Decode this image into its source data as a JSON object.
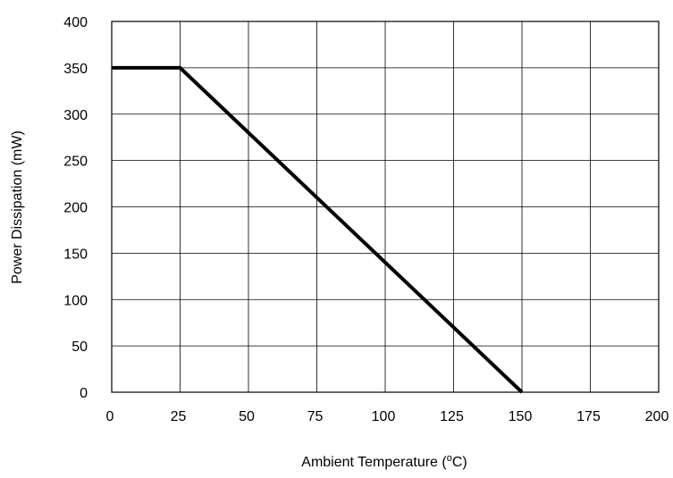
{
  "chart_data": {
    "type": "line",
    "title": "",
    "xlabel": "Ambient Temperature (oC)",
    "xlabel_main": "Ambient Temperature (",
    "xlabel_super": "o",
    "xlabel_tail": "C)",
    "ylabel": "Power Dissipation (mW)",
    "xlim": [
      0,
      200
    ],
    "ylim": [
      0,
      400
    ],
    "xticks": [
      0,
      25,
      50,
      75,
      100,
      125,
      150,
      175,
      200
    ],
    "yticks": [
      0,
      50,
      100,
      150,
      200,
      250,
      300,
      350,
      400
    ],
    "grid": true,
    "series": [
      {
        "x": [
          0,
          25,
          150
        ],
        "y": [
          350,
          350,
          0
        ]
      }
    ]
  },
  "colors": {
    "line": "#000000",
    "grid": "#000000",
    "background": "#ffffff"
  }
}
